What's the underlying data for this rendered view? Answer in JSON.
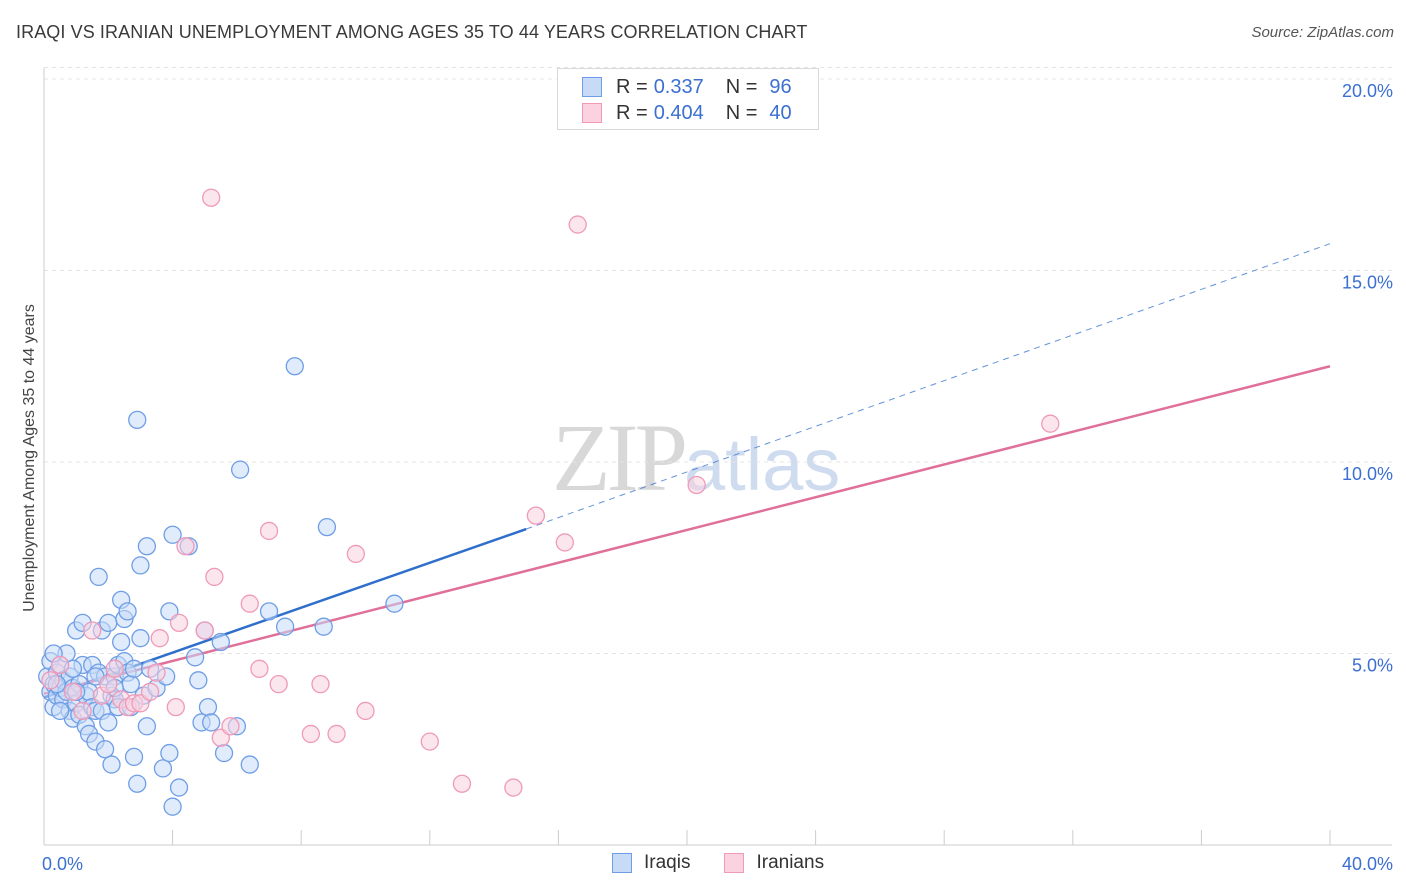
{
  "title": "IRAQI VS IRANIAN UNEMPLOYMENT AMONG AGES 35 TO 44 YEARS CORRELATION CHART",
  "source": "Source: ZipAtlas.com",
  "watermark": {
    "zip": "ZIP",
    "atlas": "atlas"
  },
  "legend_top": {
    "rows": [
      {
        "r_label": "R =",
        "r_value": "0.337",
        "n_label": "N =",
        "n_value": "96"
      },
      {
        "r_label": "R =",
        "r_value": "0.404",
        "n_label": "N =",
        "n_value": "40"
      }
    ]
  },
  "legend_bottom": {
    "items": [
      "Iraqis",
      "Iranians"
    ]
  },
  "chart_data": {
    "type": "scatter",
    "title": "IRAQI VS IRANIAN UNEMPLOYMENT AMONG AGES 35 TO 44 YEARS CORRELATION CHART",
    "xlabel": "",
    "ylabel": "Unemployment Among Ages 35 to 44 years",
    "xlim": [
      0,
      40
    ],
    "ylim": [
      0,
      20
    ],
    "x_tick_labels": [
      "0.0%",
      "40.0%"
    ],
    "y_tick_labels": [
      "5.0%",
      "10.0%",
      "15.0%",
      "20.0%"
    ],
    "y_ticks": [
      5,
      10,
      15,
      20
    ],
    "grid": true,
    "legend_position": "top-center",
    "series": [
      {
        "name": "Iraqis",
        "color": "#6f9ee6",
        "fill": "#c7dbf7",
        "trend_color": "#2f6fcc",
        "trend": {
          "x0": 0,
          "y0": 3.85,
          "x1": 15.0,
          "y1": 8.25,
          "dashed_to_x": 40,
          "dashed_to_y": 15.7
        },
        "points": [
          [
            0.1,
            4.4
          ],
          [
            0.2,
            4.0
          ],
          [
            0.2,
            4.8
          ],
          [
            0.3,
            3.6
          ],
          [
            0.3,
            4.2
          ],
          [
            0.4,
            4.5
          ],
          [
            0.4,
            3.9
          ],
          [
            0.5,
            4.1
          ],
          [
            0.5,
            4.7
          ],
          [
            0.6,
            4.3
          ],
          [
            0.6,
            3.8
          ],
          [
            0.7,
            5.0
          ],
          [
            0.7,
            4.0
          ],
          [
            0.8,
            3.5
          ],
          [
            0.8,
            4.4
          ],
          [
            0.9,
            3.3
          ],
          [
            0.9,
            4.1
          ],
          [
            1.0,
            5.6
          ],
          [
            1.0,
            3.7
          ],
          [
            1.1,
            4.2
          ],
          [
            1.1,
            3.4
          ],
          [
            1.2,
            5.8
          ],
          [
            1.2,
            4.7
          ],
          [
            1.3,
            3.9
          ],
          [
            1.3,
            3.1
          ],
          [
            1.4,
            2.9
          ],
          [
            1.4,
            4.0
          ],
          [
            1.5,
            3.6
          ],
          [
            1.5,
            4.7
          ],
          [
            1.6,
            2.7
          ],
          [
            1.6,
            3.5
          ],
          [
            1.7,
            4.5
          ],
          [
            1.7,
            7.0
          ],
          [
            1.8,
            3.5
          ],
          [
            1.8,
            5.6
          ],
          [
            1.9,
            4.4
          ],
          [
            1.9,
            2.5
          ],
          [
            2.0,
            5.8
          ],
          [
            2.0,
            3.2
          ],
          [
            2.1,
            3.9
          ],
          [
            2.1,
            2.1
          ],
          [
            2.2,
            4.4
          ],
          [
            2.2,
            3.8
          ],
          [
            2.3,
            3.6
          ],
          [
            2.3,
            4.7
          ],
          [
            2.4,
            5.3
          ],
          [
            2.4,
            6.4
          ],
          [
            2.5,
            4.8
          ],
          [
            2.5,
            5.9
          ],
          [
            2.6,
            6.1
          ],
          [
            2.6,
            4.5
          ],
          [
            2.7,
            3.6
          ],
          [
            2.7,
            4.2
          ],
          [
            2.8,
            2.3
          ],
          [
            2.8,
            4.6
          ],
          [
            2.9,
            11.1
          ],
          [
            2.9,
            1.6
          ],
          [
            3.0,
            5.4
          ],
          [
            3.0,
            7.3
          ],
          [
            3.1,
            3.9
          ],
          [
            3.2,
            7.8
          ],
          [
            3.2,
            3.1
          ],
          [
            3.3,
            4.6
          ],
          [
            3.5,
            4.1
          ],
          [
            3.7,
            2.0
          ],
          [
            3.8,
            4.4
          ],
          [
            3.9,
            6.1
          ],
          [
            3.9,
            2.4
          ],
          [
            4.0,
            1.0
          ],
          [
            4.0,
            8.1
          ],
          [
            4.2,
            1.5
          ],
          [
            4.5,
            7.8
          ],
          [
            4.7,
            4.9
          ],
          [
            4.8,
            4.3
          ],
          [
            4.9,
            3.2
          ],
          [
            5.0,
            5.6
          ],
          [
            5.1,
            3.6
          ],
          [
            5.2,
            3.2
          ],
          [
            5.5,
            5.3
          ],
          [
            5.6,
            2.4
          ],
          [
            6.0,
            3.1
          ],
          [
            6.1,
            9.8
          ],
          [
            6.4,
            2.1
          ],
          [
            7.0,
            6.1
          ],
          [
            7.5,
            5.7
          ],
          [
            7.8,
            12.5
          ],
          [
            8.7,
            5.7
          ],
          [
            8.8,
            8.3
          ],
          [
            10.9,
            6.3
          ],
          [
            0.3,
            5.0
          ],
          [
            0.5,
            3.5
          ],
          [
            0.9,
            4.6
          ],
          [
            1.6,
            4.4
          ],
          [
            2.2,
            4.1
          ],
          [
            0.4,
            4.2
          ],
          [
            1.0,
            4.0
          ]
        ]
      },
      {
        "name": "Iranians",
        "color": "#ef9ab8",
        "fill": "#fad2e0",
        "trend_color": "#e0709a",
        "trend": {
          "x0": 0,
          "y0": 3.95,
          "x1": 40,
          "y1": 12.5
        },
        "points": [
          [
            0.2,
            4.3
          ],
          [
            0.5,
            4.7
          ],
          [
            0.9,
            4.0
          ],
          [
            1.2,
            3.5
          ],
          [
            1.5,
            5.6
          ],
          [
            1.8,
            3.9
          ],
          [
            2.0,
            4.2
          ],
          [
            2.2,
            4.6
          ],
          [
            2.4,
            3.8
          ],
          [
            2.6,
            3.6
          ],
          [
            2.8,
            3.7
          ],
          [
            3.0,
            3.7
          ],
          [
            3.3,
            4.0
          ],
          [
            3.5,
            4.5
          ],
          [
            3.6,
            5.4
          ],
          [
            4.1,
            3.6
          ],
          [
            4.2,
            5.8
          ],
          [
            4.4,
            7.8
          ],
          [
            5.0,
            5.6
          ],
          [
            5.2,
            16.9
          ],
          [
            5.3,
            7.0
          ],
          [
            5.5,
            2.8
          ],
          [
            5.8,
            3.1
          ],
          [
            6.4,
            6.3
          ],
          [
            6.7,
            4.6
          ],
          [
            7.0,
            8.2
          ],
          [
            7.3,
            4.2
          ],
          [
            8.3,
            2.9
          ],
          [
            8.6,
            4.2
          ],
          [
            9.1,
            2.9
          ],
          [
            9.7,
            7.6
          ],
          [
            10.0,
            3.5
          ],
          [
            12.0,
            2.7
          ],
          [
            13.0,
            1.6
          ],
          [
            14.6,
            1.5
          ],
          [
            15.3,
            8.6
          ],
          [
            16.2,
            7.9
          ],
          [
            16.6,
            16.2
          ],
          [
            20.3,
            9.4
          ],
          [
            31.3,
            11.0
          ]
        ]
      }
    ]
  }
}
